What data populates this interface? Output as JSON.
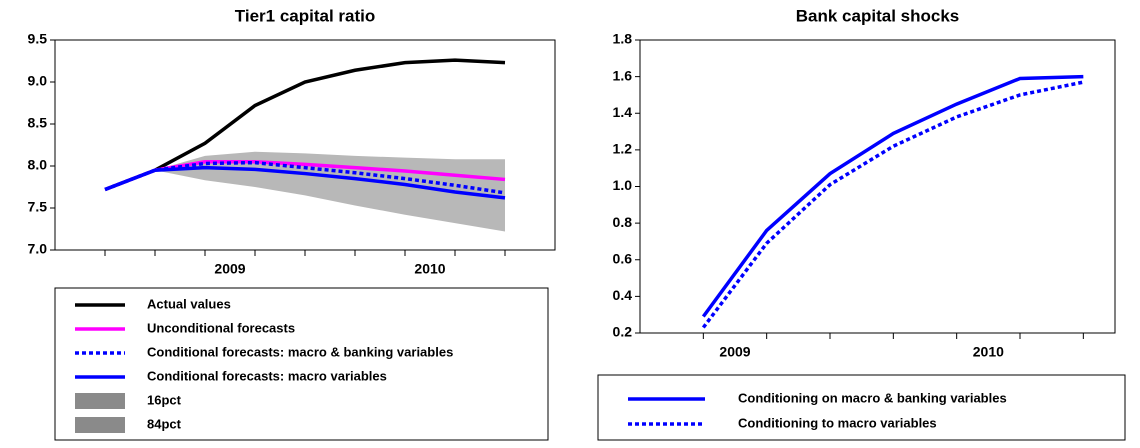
{
  "chart_data": [
    {
      "type": "line",
      "title": "Tier1 capital ratio",
      "x": [
        2008.875,
        2009.125,
        2009.375,
        2009.625,
        2009.875,
        2010.125,
        2010.375,
        2010.625,
        2010.875
      ],
      "xlim": [
        2008.625,
        2011.125
      ],
      "xticks": [
        {
          "value": 2009.5,
          "label": "2009"
        },
        {
          "value": 2010.5,
          "label": "2010"
        }
      ],
      "ylim": [
        7.0,
        9.5
      ],
      "yticks": [
        {
          "value": 7.0,
          "label": "7.0"
        },
        7.5,
        {
          "value": 8.0,
          "label": "8.0"
        },
        8.5,
        {
          "value": 9.0,
          "label": "9.0"
        },
        9.5
      ],
      "series": [
        {
          "name": "Actual values",
          "color": "#000000",
          "style": "solid",
          "values": [
            7.72,
            7.95,
            8.27,
            8.72,
            9.0,
            9.14,
            9.23,
            9.26,
            9.23
          ]
        },
        {
          "name": "Unconditional forecasts",
          "color": "#ff00ff",
          "style": "solid",
          "values": [
            7.72,
            7.95,
            8.05,
            8.05,
            8.02,
            7.98,
            7.94,
            7.89,
            7.84
          ]
        },
        {
          "name": "Conditional forecasts: macro & banking variables",
          "color": "#0000ff",
          "style": "dotted",
          "values": [
            7.72,
            7.95,
            8.03,
            8.04,
            7.98,
            7.92,
            7.85,
            7.77,
            7.68
          ]
        },
        {
          "name": "Conditional forecasts: macro variables",
          "color": "#0000ff",
          "style": "solid",
          "values": [
            7.72,
            7.95,
            7.98,
            7.96,
            7.91,
            7.85,
            7.78,
            7.69,
            7.62
          ]
        },
        {
          "name": "16pct",
          "color": "#b8b8b8",
          "style": "band-lower",
          "values": [
            7.72,
            7.95,
            7.83,
            7.75,
            7.65,
            7.53,
            7.42,
            7.32,
            7.22
          ]
        },
        {
          "name": "84pct",
          "color": "#b8b8b8",
          "style": "band-upper",
          "values": [
            7.72,
            7.95,
            8.12,
            8.17,
            8.15,
            8.12,
            8.1,
            8.08,
            8.08
          ]
        }
      ]
    },
    {
      "type": "line",
      "title": "Bank capital shocks",
      "x": [
        2009.375,
        2009.625,
        2009.875,
        2010.125,
        2010.375,
        2010.625,
        2010.875
      ],
      "xlim": [
        2009.125,
        2011.0
      ],
      "xticks": [
        {
          "value": 2009.5,
          "label": "2009"
        },
        {
          "value": 2010.5,
          "label": "2010"
        }
      ],
      "ylim": [
        0.2,
        1.8
      ],
      "yticks": [
        0.2,
        0.4,
        0.6,
        0.8,
        {
          "value": 1.0,
          "label": "1.0"
        },
        1.2,
        1.4,
        1.6,
        1.8
      ],
      "series": [
        {
          "name": "Conditioning on macro & banking variables",
          "color": "#0000ff",
          "style": "solid",
          "values": [
            0.29,
            0.76,
            1.07,
            1.29,
            1.45,
            1.59,
            1.6
          ]
        },
        {
          "name": "Conditioning to macro variables",
          "color": "#0000ff",
          "style": "dotted",
          "values": [
            0.23,
            0.69,
            1.01,
            1.22,
            1.38,
            1.5,
            1.57
          ]
        }
      ]
    }
  ]
}
